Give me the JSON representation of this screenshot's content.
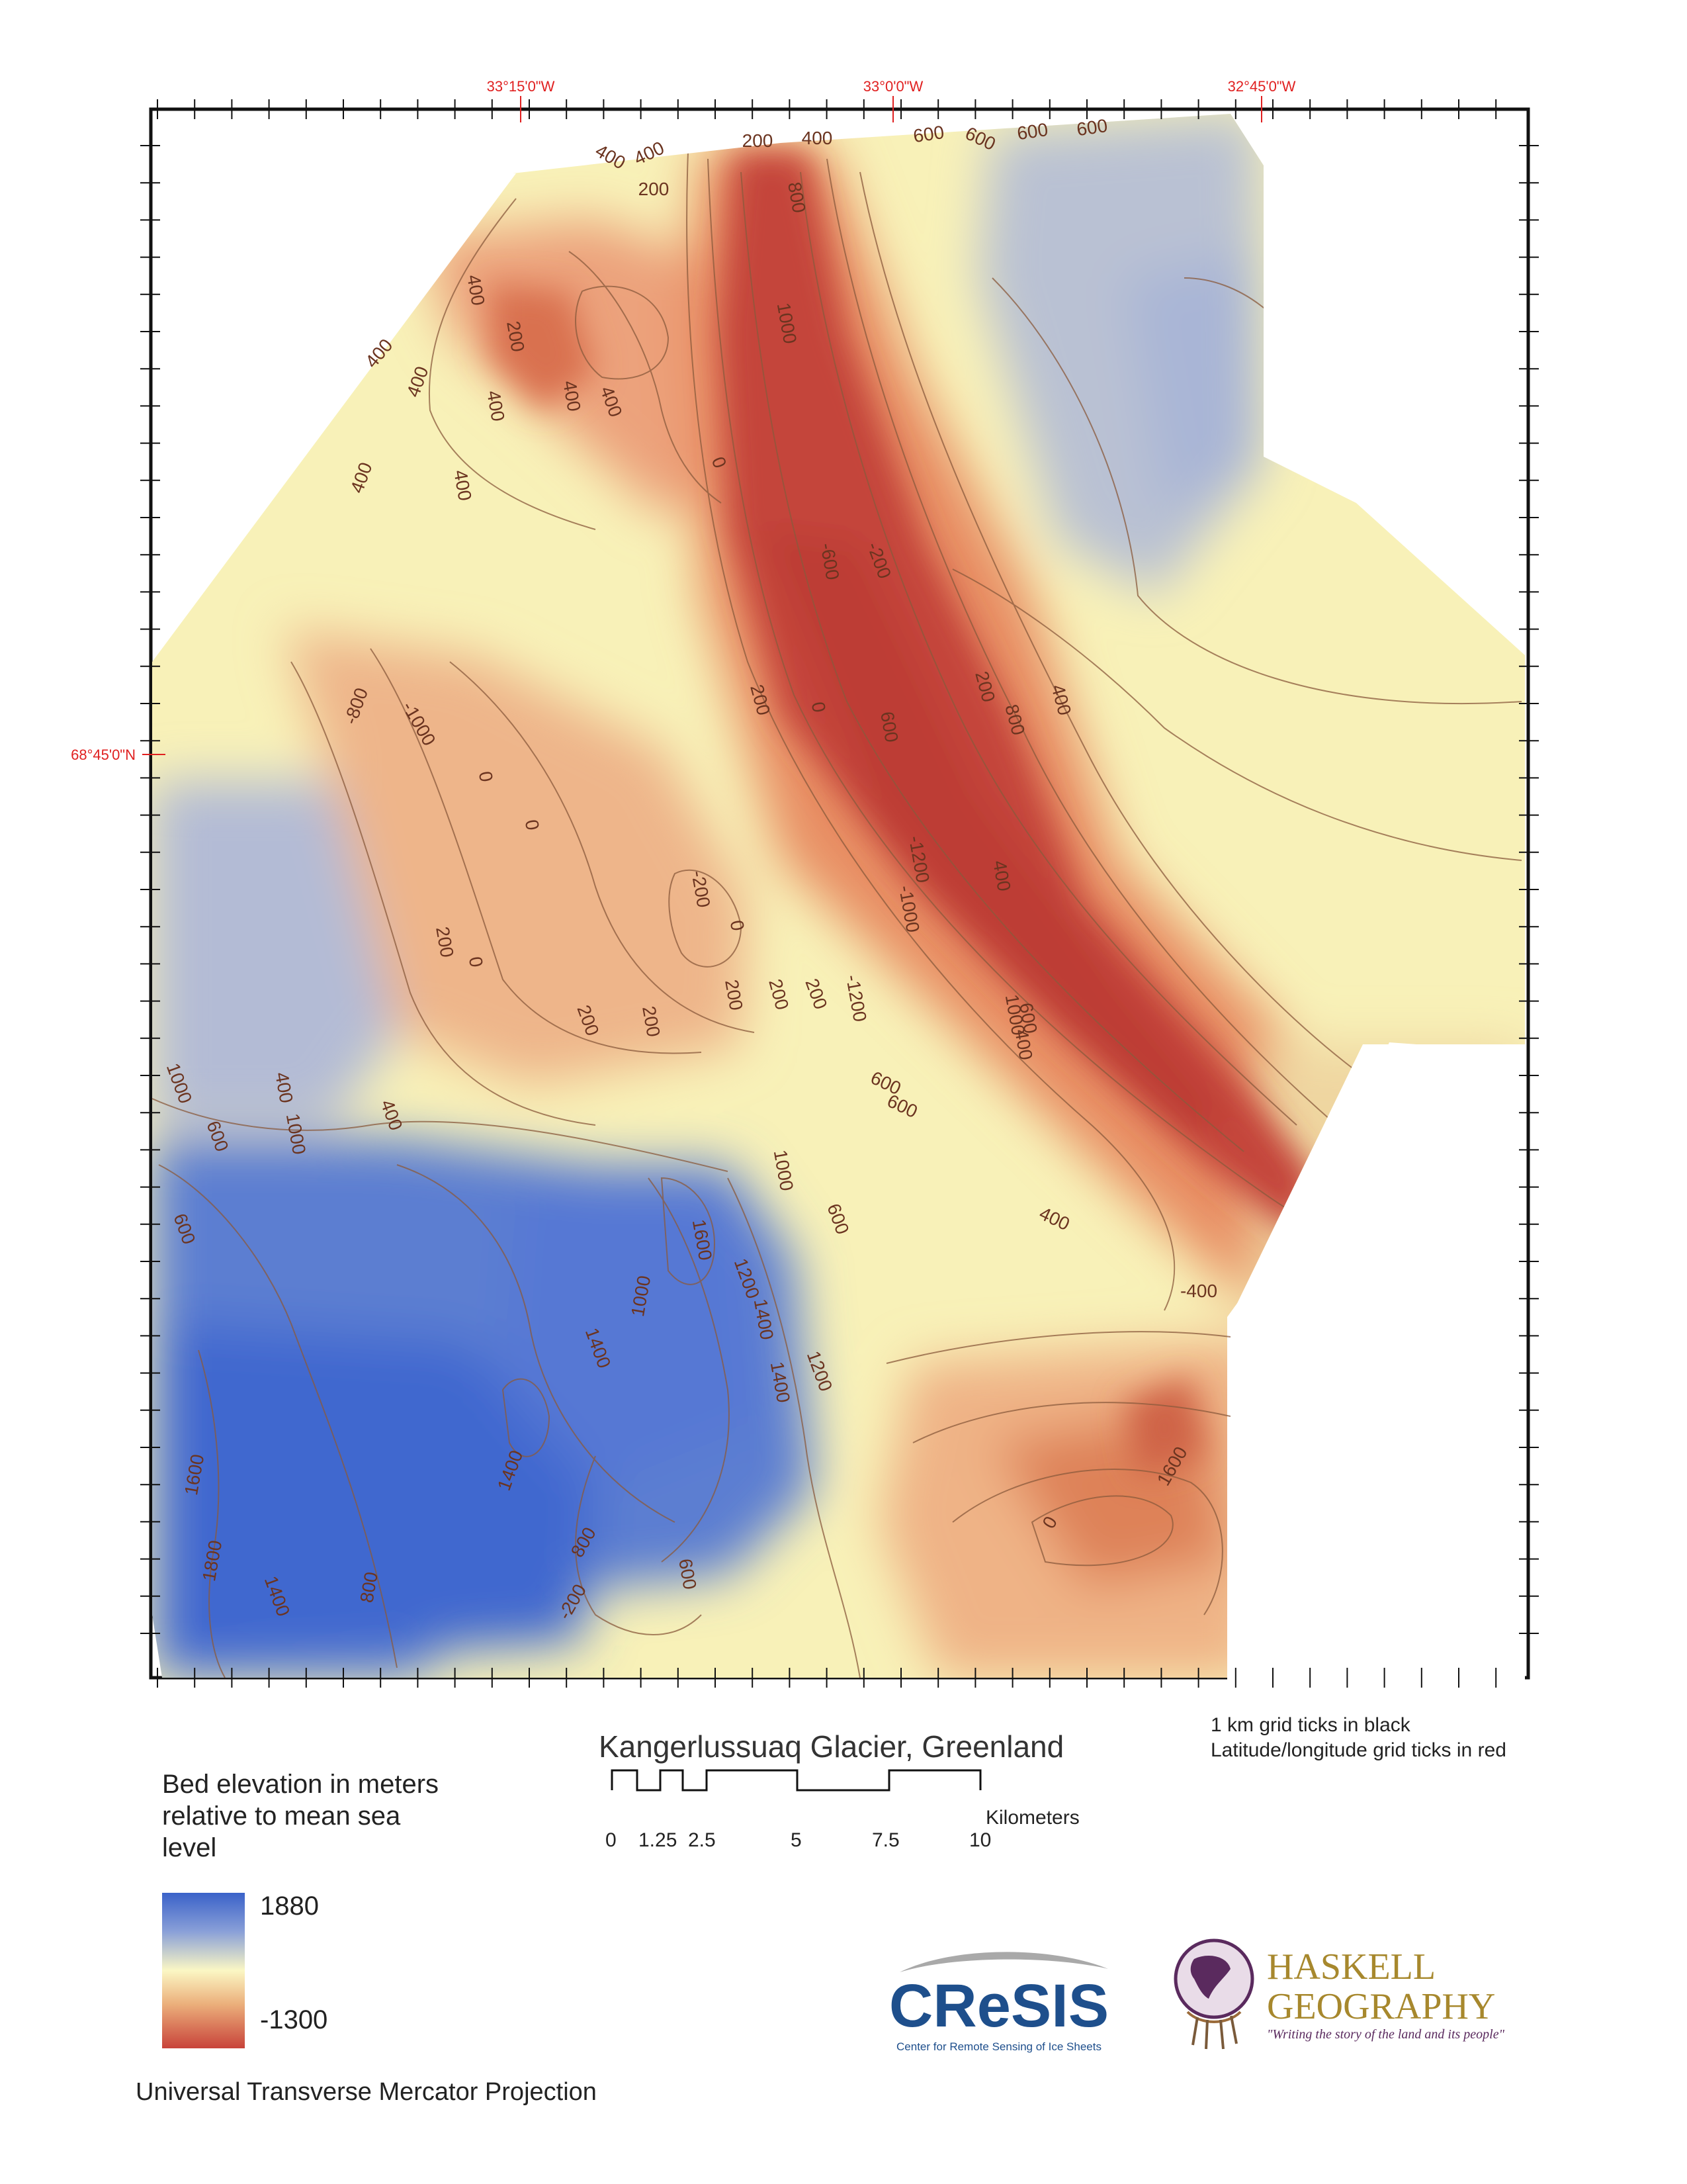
{
  "map": {
    "title": "Kangerlussuaq Glacier, Greenland",
    "projection": "Universal Transverse Mercator Projection",
    "grid_note_black": "1 km grid ticks in black",
    "grid_note_red": "Latitude/longitude grid ticks in red",
    "lon_labels": [
      "33°15'0\"W",
      "33°0'0\"W",
      "32°45'0\"W"
    ],
    "lat_label": "68°45'0\"N",
    "legend": {
      "title": "Bed elevation in meters relative to mean sea level",
      "max_label": "1880",
      "min_label": "-1300",
      "colors": {
        "high": "#3a62c9",
        "mid": "#fbf7c4",
        "low": "#c8433a"
      }
    },
    "scale_bar": {
      "unit": "Kilometers",
      "ticks": [
        "0",
        "1.25",
        "2.5",
        "5",
        "7.5",
        "10"
      ]
    },
    "contour_labels": [
      "200",
      "400",
      "600",
      "600",
      "600",
      "600",
      "400",
      "200",
      "800",
      "400",
      "400",
      "200",
      "400",
      "400",
      "400",
      "400",
      "0",
      "1000",
      "400",
      "400",
      "400",
      "-600",
      "-200",
      "200",
      "400",
      "600",
      "800",
      "200",
      "0",
      "-800",
      "-1000",
      "0",
      "0",
      "-200",
      "0",
      "-1200",
      "-1000",
      "400",
      "600",
      "400",
      "200",
      "0",
      "200",
      "200",
      "200",
      "200",
      "200",
      "-1200",
      "1000",
      "1000",
      "400",
      "400",
      "1000",
      "600",
      "600",
      "600",
      "1000",
      "600",
      "1600",
      "1200",
      "1000",
      "1400",
      "1400",
      "1200",
      "1400",
      "600",
      "400",
      "1400",
      "-400",
      "1600",
      "1600",
      "1800",
      "1400",
      "800",
      "600",
      "800",
      "-200",
      "0"
    ]
  },
  "logos": {
    "cresis_name": "CReSIS",
    "cresis_sub": "Center for Remote Sensing of Ice Sheets",
    "haskell_line1": "HASKELL",
    "haskell_line2": "GEOGRAPHY",
    "haskell_tagline": "\"Writing the story of the land and its people\""
  }
}
